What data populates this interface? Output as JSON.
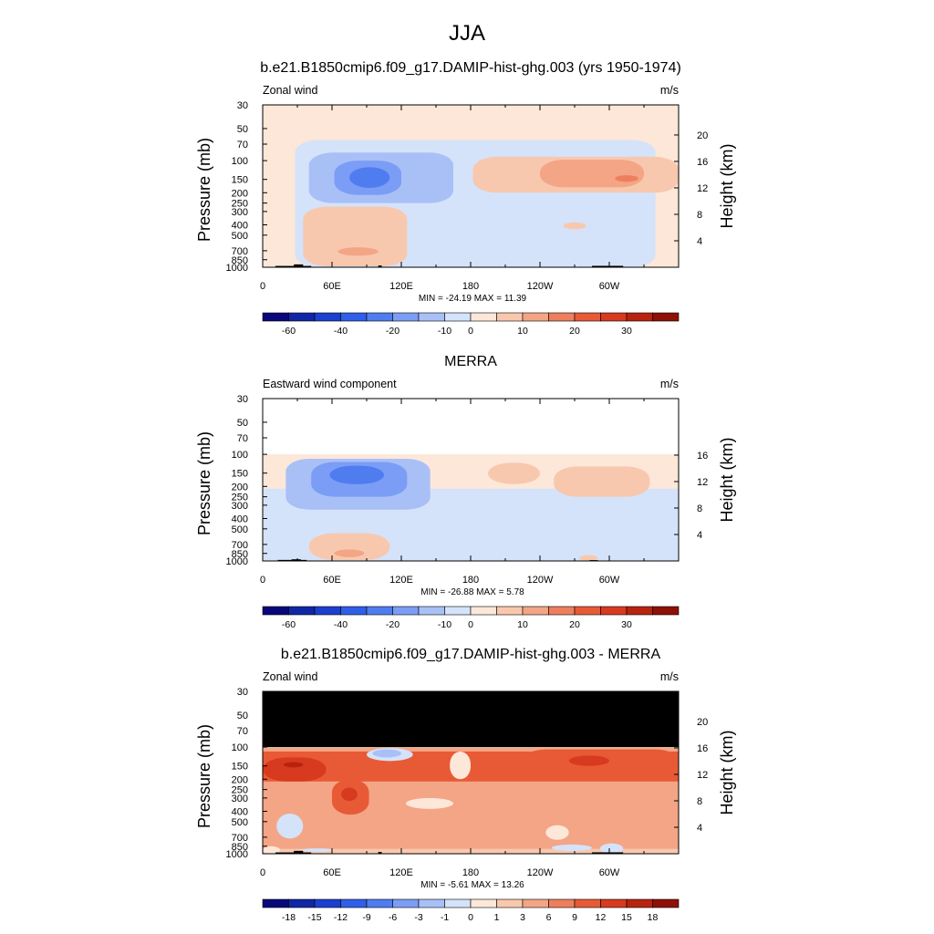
{
  "figure": {
    "title": "JJA",
    "axis_labels": {
      "left": "Pressure (mb)",
      "right": "Height (km)"
    },
    "pressure_ticks": [
      "30",
      "50",
      "70",
      "100",
      "150",
      "200",
      "250",
      "300",
      "400",
      "500",
      "700",
      "850",
      "1000"
    ],
    "lon_ticks": [
      "0",
      "60E",
      "120E",
      "180",
      "120W",
      "60W"
    ]
  },
  "chart_data": [
    {
      "type": "heatmap",
      "title": "b.e21.B1850cmip6.f09_g17.DAMIP-hist-ghg.003 (yrs 1950-1974)",
      "left_label": "Zonal wind",
      "units": "m/s",
      "xlabel": "",
      "ylabel": "Pressure (mb)",
      "ylabel_right": "Height (km)",
      "x_range": [
        0,
        360
      ],
      "y_range_mb": [
        1000,
        30
      ],
      "height_ticks_km": [
        "4",
        "8",
        "12",
        "16",
        "20"
      ],
      "stats": "MIN = -24.19  MAX =  11.39",
      "colorbar": {
        "colors": [
          "#08087a",
          "#1126a6",
          "#1c3fcf",
          "#2f5fe8",
          "#4f7df0",
          "#7b9df5",
          "#a9c0f7",
          "#d4e3fa",
          "#fde7d8",
          "#f8c8ae",
          "#f3a585",
          "#ee7f5c",
          "#e85a36",
          "#d73a1e",
          "#b8230f",
          "#8e1006"
        ],
        "tick_labels": [
          "-60",
          "-40",
          "-20",
          "-10",
          "0",
          "10",
          "20",
          "30"
        ],
        "tick_edges": [
          1,
          3,
          5,
          7,
          8,
          10,
          12,
          14
        ]
      }
    },
    {
      "type": "heatmap",
      "title": "MERRA",
      "left_label": "Eastward wind component",
      "units": "m/s",
      "xlabel": "",
      "ylabel": "Pressure (mb)",
      "ylabel_right": "Height (km)",
      "x_range": [
        0,
        360
      ],
      "y_range_mb": [
        1000,
        30
      ],
      "height_ticks_km": [
        "4",
        "8",
        "12",
        "16"
      ],
      "stats": "MIN = -26.88  MAX =   5.78",
      "colorbar": {
        "colors": [
          "#08087a",
          "#1126a6",
          "#1c3fcf",
          "#2f5fe8",
          "#4f7df0",
          "#7b9df5",
          "#a9c0f7",
          "#d4e3fa",
          "#fde7d8",
          "#f8c8ae",
          "#f3a585",
          "#ee7f5c",
          "#e85a36",
          "#d73a1e",
          "#b8230f",
          "#8e1006"
        ],
        "tick_labels": [
          "-60",
          "-40",
          "-20",
          "-10",
          "0",
          "10",
          "20",
          "30"
        ],
        "tick_edges": [
          1,
          3,
          5,
          7,
          8,
          10,
          12,
          14
        ]
      }
    },
    {
      "type": "heatmap",
      "title": "b.e21.B1850cmip6.f09_g17.DAMIP-hist-ghg.003 - MERRA",
      "left_label": "Zonal wind",
      "units": "m/s",
      "xlabel": "",
      "ylabel": "Pressure (mb)",
      "ylabel_right": "Height (km)",
      "x_range": [
        0,
        360
      ],
      "y_range_mb": [
        1000,
        30
      ],
      "height_ticks_km": [
        "4",
        "8",
        "12",
        "16",
        "20"
      ],
      "stats": "MIN =  -5.61  MAX =  13.26",
      "colorbar": {
        "colors": [
          "#08087a",
          "#1126a6",
          "#1c3fcf",
          "#2f5fe8",
          "#4f7df0",
          "#7b9df5",
          "#a9c0f7",
          "#d4e3fa",
          "#fde7d8",
          "#f8c8ae",
          "#f3a585",
          "#ee7f5c",
          "#e85a36",
          "#d73a1e",
          "#b8230f",
          "#8e1006"
        ],
        "tick_labels": [
          "-18",
          "-15",
          "-12",
          "-9",
          "-6",
          "-3",
          "-1",
          "0",
          "1",
          "3",
          "6",
          "9",
          "12",
          "15",
          "18"
        ],
        "tick_edges": [
          1,
          2,
          3,
          4,
          5,
          6,
          7,
          8,
          9,
          10,
          11,
          12,
          13,
          14,
          15
        ]
      }
    }
  ]
}
